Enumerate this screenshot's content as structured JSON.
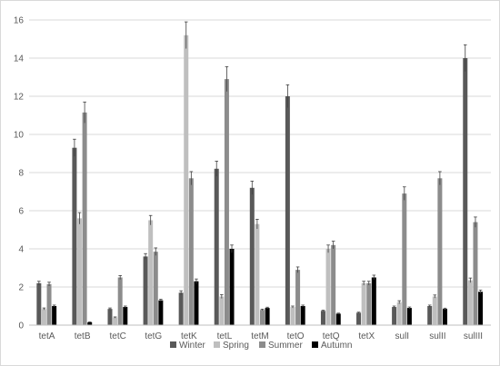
{
  "chart_data": {
    "type": "bar",
    "categories": [
      "tetA",
      "tetB",
      "tetC",
      "tetG",
      "tetK",
      "tetL",
      "tetM",
      "tetO",
      "tetQ",
      "tetX",
      "sulI",
      "sulII",
      "sulIII"
    ],
    "series": [
      {
        "name": "Winter",
        "color": "#595959",
        "values": [
          2.2,
          9.3,
          0.85,
          3.6,
          1.7,
          8.2,
          7.2,
          12.0,
          0.75,
          0.65,
          0.95,
          1.0,
          14.0
        ],
        "errors": [
          0.1,
          0.45,
          0.05,
          0.15,
          0.1,
          0.4,
          0.35,
          0.6,
          0.03,
          0.03,
          0.05,
          0.05,
          0.7
        ]
      },
      {
        "name": "Spring",
        "color": "#bfbfbf",
        "values": [
          0.85,
          5.6,
          0.4,
          5.5,
          15.2,
          1.5,
          5.3,
          0.95,
          4.0,
          2.2,
          1.2,
          1.5,
          2.35
        ],
        "errors": [
          0.05,
          0.3,
          0.03,
          0.25,
          0.7,
          0.1,
          0.25,
          0.05,
          0.2,
          0.1,
          0.08,
          0.08,
          0.12
        ]
      },
      {
        "name": "Summer",
        "color": "#8c8c8c",
        "values": [
          2.15,
          11.15,
          2.5,
          3.85,
          7.7,
          12.9,
          0.8,
          2.9,
          4.2,
          2.2,
          6.9,
          7.7,
          5.4
        ],
        "errors": [
          0.1,
          0.55,
          0.1,
          0.2,
          0.35,
          0.65,
          0.04,
          0.15,
          0.2,
          0.1,
          0.35,
          0.35,
          0.27
        ]
      },
      {
        "name": "Autumn",
        "color": "#000000",
        "values": [
          1.0,
          0.15,
          0.95,
          1.3,
          2.3,
          4.0,
          0.9,
          1.0,
          0.6,
          2.5,
          0.9,
          0.85,
          1.75
        ],
        "errors": [
          0.05,
          0.02,
          0.05,
          0.06,
          0.12,
          0.2,
          0.04,
          0.05,
          0.03,
          0.12,
          0.05,
          0.04,
          0.09
        ]
      }
    ],
    "y_ticks": [
      "0",
      "2",
      "4",
      "6",
      "8",
      "10",
      "12",
      "14",
      "16"
    ],
    "ylim": [
      0,
      16
    ],
    "grid": "horizontal",
    "legend": "bottom",
    "error_bars": true
  }
}
